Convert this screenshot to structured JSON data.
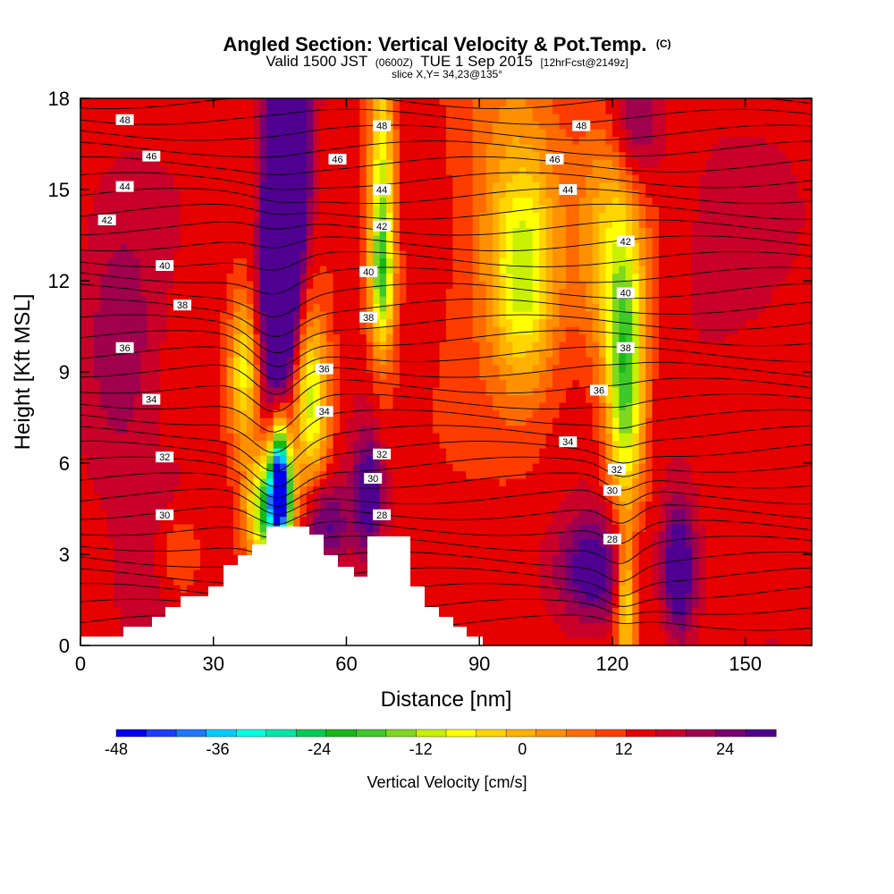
{
  "chart_data": {
    "type": "heatmap",
    "title": "Angled Section: Vertical Velocity & Pot.Temp.",
    "title_unit": "(C)",
    "subtitle_parts": [
      "Valid 1500 JST",
      "(0600Z)",
      "TUE 1 Sep 2015",
      "[12hrFcst@2149z]"
    ],
    "subtitle2": "slice X,Y= 34,23@135°",
    "xlabel": "Distance [nm]",
    "ylabel": "Height [Kft MSL]",
    "xlim": [
      0,
      165
    ],
    "ylim": [
      0,
      18
    ],
    "xticks": [
      0,
      30,
      60,
      90,
      120,
      150
    ],
    "yticks": [
      0,
      3,
      6,
      9,
      12,
      15,
      18
    ],
    "colorbar": {
      "label": "Vertical Velocity [cm/s]",
      "min": -48,
      "max": 30,
      "step": 3,
      "tick_labels": [
        -48,
        -36,
        -24,
        -12,
        0,
        12,
        24
      ],
      "colors": [
        "#0000ee",
        "#1b3dff",
        "#1f78ff",
        "#00ccff",
        "#00ffe0",
        "#00e6a8",
        "#00cc55",
        "#17b817",
        "#3dc92a",
        "#7fd81f",
        "#c8f000",
        "#ffff00",
        "#ffd500",
        "#ffb000",
        "#ff9000",
        "#ff6b00",
        "#ff3c00",
        "#e60000",
        "#c8002a",
        "#a0004d",
        "#780070",
        "#500090"
      ]
    },
    "velocity_features": [
      {
        "x": 9,
        "y": 9.5,
        "value": 7.5,
        "sx": 6,
        "sy": 3
      },
      {
        "x": 20,
        "y": 3.5,
        "value": 6,
        "sx": 6,
        "sy": 2
      },
      {
        "x": 46,
        "y": 14,
        "value": 27,
        "sx": 2.5,
        "sy": 3
      },
      {
        "x": 47,
        "y": 16.5,
        "value": 22,
        "sx": 3.5,
        "sy": 2.5
      },
      {
        "x": 44,
        "y": 11,
        "value": 15,
        "sx": 3,
        "sy": 2.5
      },
      {
        "x": 37,
        "y": 9,
        "value": -18,
        "sx": 2.5,
        "sy": 1.8
      },
      {
        "x": 45,
        "y": 5.5,
        "value": -42,
        "sx": 1.5,
        "sy": 1.4
      },
      {
        "x": 43,
        "y": 4.5,
        "value": -34,
        "sx": 3.5,
        "sy": 1.3
      },
      {
        "x": 52,
        "y": 8,
        "value": -22,
        "sx": 3,
        "sy": 2
      },
      {
        "x": 22,
        "y": 3,
        "value": -10,
        "sx": 4,
        "sy": 1.2
      },
      {
        "x": 55,
        "y": 4,
        "value": 12,
        "sx": 4,
        "sy": 1
      },
      {
        "x": 65,
        "y": 5,
        "value": 14,
        "sx": 2.5,
        "sy": 1.5
      },
      {
        "x": 68,
        "y": 15,
        "value": -20,
        "sx": 2,
        "sy": 3.5
      },
      {
        "x": 68,
        "y": 12,
        "value": -14,
        "sx": 2,
        "sy": 1.5
      },
      {
        "x": 100,
        "y": 12,
        "value": -16,
        "sx": 5,
        "sy": 2.5
      },
      {
        "x": 97,
        "y": 15,
        "value": -9,
        "sx": 9,
        "sy": 4
      },
      {
        "x": 123,
        "y": 8.5,
        "value": -26,
        "sx": 3,
        "sy": 3
      },
      {
        "x": 120,
        "y": 13,
        "value": -13,
        "sx": 5,
        "sy": 3
      },
      {
        "x": 116,
        "y": 2.5,
        "value": 15,
        "sx": 6,
        "sy": 1.3
      },
      {
        "x": 135,
        "y": 2.5,
        "value": 18,
        "sx": 2.5,
        "sy": 1.5
      },
      {
        "x": 123,
        "y": 1.5,
        "value": -18,
        "sx": 1.5,
        "sy": 1.5
      },
      {
        "x": 125,
        "y": 17,
        "value": 10,
        "sx": 4,
        "sy": 1.5
      },
      {
        "x": 145,
        "y": 12,
        "value": 2,
        "sx": 10,
        "sy": 4
      }
    ],
    "contour_labels": [
      {
        "text": "48",
        "x": 10,
        "y": 17.3
      },
      {
        "text": "46",
        "x": 16,
        "y": 16.1
      },
      {
        "text": "44",
        "x": 10,
        "y": 15.1
      },
      {
        "text": "42",
        "x": 6,
        "y": 14
      },
      {
        "text": "40",
        "x": 19,
        "y": 12.5
      },
      {
        "text": "38",
        "x": 23,
        "y": 11.2
      },
      {
        "text": "36",
        "x": 10,
        "y": 9.8
      },
      {
        "text": "34",
        "x": 16,
        "y": 8.1
      },
      {
        "text": "32",
        "x": 19,
        "y": 6.2
      },
      {
        "text": "30",
        "x": 19,
        "y": 4.3
      },
      {
        "text": "46",
        "x": 58,
        "y": 16
      },
      {
        "text": "48",
        "x": 68,
        "y": 17.1
      },
      {
        "text": "44",
        "x": 68,
        "y": 15
      },
      {
        "text": "42",
        "x": 68,
        "y": 13.8
      },
      {
        "text": "40",
        "x": 65,
        "y": 12.3
      },
      {
        "text": "38",
        "x": 65,
        "y": 10.8
      },
      {
        "text": "36",
        "x": 55,
        "y": 9.1
      },
      {
        "text": "34",
        "x": 55,
        "y": 7.7
      },
      {
        "text": "32",
        "x": 68,
        "y": 6.3
      },
      {
        "text": "30",
        "x": 66,
        "y": 5.5
      },
      {
        "text": "28",
        "x": 68,
        "y": 4.3
      },
      {
        "text": "48",
        "x": 113,
        "y": 17.1
      },
      {
        "text": "46",
        "x": 107,
        "y": 16
      },
      {
        "text": "44",
        "x": 110,
        "y": 15
      },
      {
        "text": "42",
        "x": 123,
        "y": 13.3
      },
      {
        "text": "40",
        "x": 123,
        "y": 11.6
      },
      {
        "text": "38",
        "x": 123,
        "y": 9.8
      },
      {
        "text": "36",
        "x": 117,
        "y": 8.4
      },
      {
        "text": "34",
        "x": 110,
        "y": 6.7
      },
      {
        "text": "32",
        "x": 121,
        "y": 5.8
      },
      {
        "text": "30",
        "x": 120,
        "y": 5.1
      },
      {
        "text": "28",
        "x": 120,
        "y": 3.5
      }
    ]
  }
}
